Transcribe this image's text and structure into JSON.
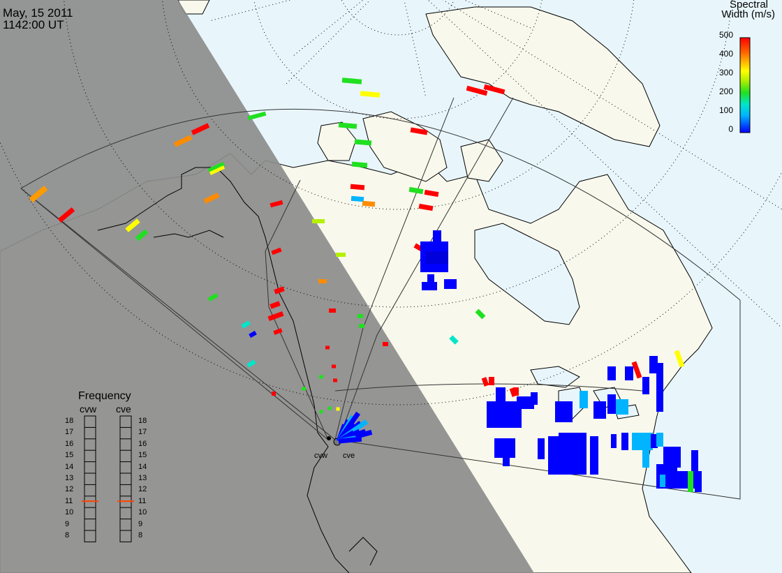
{
  "header": {
    "date": "May, 15 2011",
    "time": "1142:00 UT"
  },
  "colorbar": {
    "title_line1": "Spectral",
    "title_line2": "Width (m/s)",
    "ticks": [
      "500",
      "400",
      "300",
      "200",
      "100",
      "0"
    ],
    "colors": [
      "#0000ff",
      "#00b4ff",
      "#00e6c8",
      "#20e020",
      "#b4f000",
      "#ffff00",
      "#ffb000",
      "#ff6000",
      "#ff0000"
    ]
  },
  "frequency_panel": {
    "title": "Frequency",
    "columns": [
      "cvw",
      "cve"
    ],
    "levels": [
      "18",
      "17",
      "16",
      "15",
      "14",
      "13",
      "12",
      "11",
      "10",
      "9",
      "8"
    ],
    "active_level_cvw": "11",
    "active_level_cve": "11",
    "marker_color": "#ff4400"
  },
  "radar_sites": [
    {
      "code": "cvw"
    },
    {
      "code": "cve"
    }
  ],
  "map_colors": {
    "night": "#8c8c8c",
    "land": "#f8f8ec",
    "ocean": "#e8f6fc",
    "high_width": "#ff0000",
    "low_width": "#0000ff"
  }
}
